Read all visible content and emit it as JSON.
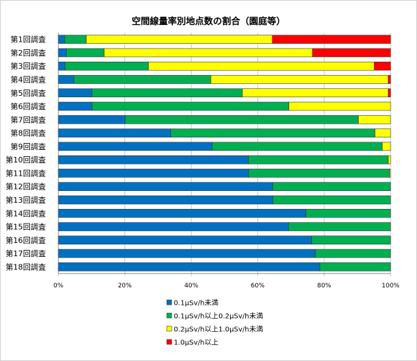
{
  "chart_data": {
    "type": "bar",
    "orientation": "horizontal",
    "stacked": "percent",
    "title": "空間線量率別地点数の割合（園庭等）",
    "categories": [
      "第1回調査",
      "第2回調査",
      "第3回調査",
      "第4回調査",
      "第5回調査",
      "第6回調査",
      "第7回調査",
      "第8回調査",
      "第9回調査",
      "第10回調査",
      "第11回調査",
      "第12回調査",
      "第13回調査",
      "第14回調査",
      "第15回調査",
      "第16回調査",
      "第17回調査",
      "第18回調査"
    ],
    "series": [
      {
        "name": "0.1μSv/h未満",
        "color": "#0070C0",
        "values": [
          1.9,
          2.4,
          2.0,
          4.7,
          10.1,
          10.1,
          20.1,
          33.8,
          46.3,
          57.2,
          57.3,
          64.6,
          64.6,
          74.5,
          69.3,
          76.3,
          77.4,
          78.7
        ]
      },
      {
        "name": "0.1μSv/h以上0.2μSv/h未満",
        "color": "#00B050",
        "values": [
          6.5,
          11.4,
          25.1,
          41.2,
          45.3,
          59.3,
          70.2,
          61.5,
          51.2,
          42.1,
          42.4,
          35.4,
          35.4,
          25.5,
          30.7,
          23.7,
          22.6,
          21.3
        ]
      },
      {
        "name": "0.2μSv/h以上1.0μSv/h未満",
        "color": "#FFFF00",
        "values": [
          56.0,
          62.7,
          68.0,
          53.4,
          43.9,
          30.6,
          9.7,
          4.7,
          2.5,
          0.7,
          0.3,
          0,
          0,
          0,
          0,
          0,
          0,
          0
        ]
      },
      {
        "name": "1.0μSv/h以上",
        "color": "#FF0000",
        "values": [
          35.6,
          23.5,
          4.9,
          0.7,
          0.7,
          0,
          0,
          0,
          0,
          0,
          0,
          0,
          0,
          0,
          0,
          0,
          0,
          0
        ]
      }
    ],
    "xlim": [
      0,
      100
    ],
    "xticks": [
      "0%",
      "20%",
      "40%",
      "60%",
      "80%",
      "100%"
    ],
    "grid": true,
    "legend_position": "bottom"
  }
}
